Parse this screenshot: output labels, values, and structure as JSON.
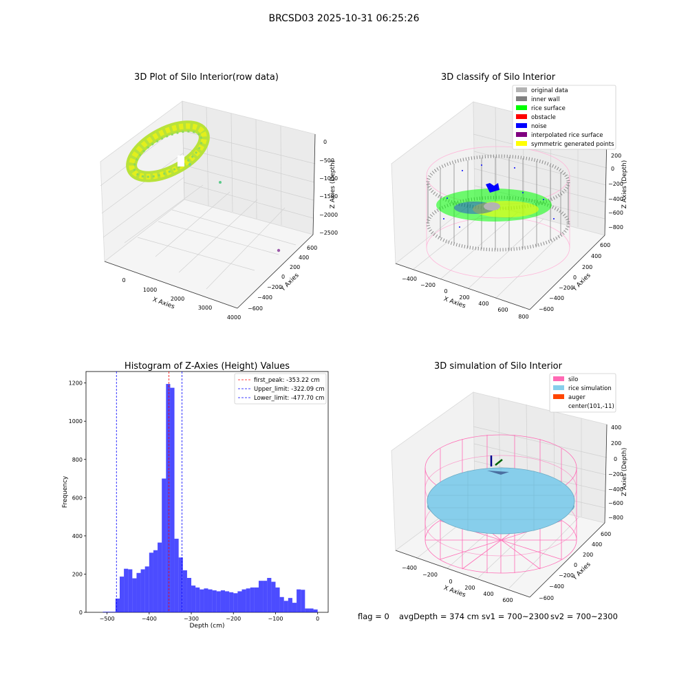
{
  "figure": {
    "title": "BRCSD03 2025-10-31 06:25:26",
    "footer": {
      "flag": "flag = 0",
      "avg_depth": "avgDepth = 374 cm",
      "sv1": "sv1 = 700~2300",
      "sv2": "sv2 = 700~2300"
    }
  },
  "panel_raw": {
    "title": "3D Plot of Silo Interior(row data)",
    "xlabel": "X Axies",
    "ylabel": "Y Axies",
    "zlabel": "Z Axies (Depth)",
    "x_ticks": [
      "0",
      "1000",
      "2000",
      "3000",
      "4000"
    ],
    "y_ticks": [
      "600",
      "400",
      "200",
      "0",
      "−200",
      "−400",
      "−600"
    ],
    "z_ticks": [
      "0",
      "−500",
      "−1000",
      "−1500",
      "−2000",
      "−2500"
    ]
  },
  "panel_classify": {
    "title": "3D classify of Silo Interior",
    "xlabel": "X Axies",
    "ylabel": "Y Axies",
    "zlabel": "Z Axies (Depth)",
    "x_ticks": [
      "−400",
      "−200",
      "0",
      "200",
      "400",
      "600",
      "800"
    ],
    "y_ticks": [
      "600",
      "400",
      "200",
      "0",
      "−200",
      "−400",
      "−600"
    ],
    "z_ticks": [
      "200",
      "0",
      "−200",
      "−400",
      "−600",
      "−800"
    ],
    "legend": [
      {
        "label": "original data",
        "color": "#b3b3b3"
      },
      {
        "label": "inner wall",
        "color": "#808080"
      },
      {
        "label": "rice surface",
        "color": "#00ff00"
      },
      {
        "label": "obstacle",
        "color": "#ff0000"
      },
      {
        "label": "noise",
        "color": "#0000ff"
      },
      {
        "label": "interpolated rice surface",
        "color": "#800080"
      },
      {
        "label": "symmetric generated points",
        "color": "#ffff00"
      }
    ]
  },
  "panel_sim": {
    "title": "3D simulation of Silo Interior",
    "xlabel": "X Axies",
    "ylabel": "Y Axies",
    "zlabel": "Z Axies (Depth)",
    "x_ticks": [
      "−400",
      "−200",
      "0",
      "200",
      "400",
      "600"
    ],
    "y_ticks": [
      "600",
      "400",
      "200",
      "0",
      "−200",
      "−400",
      "−600"
    ],
    "z_ticks": [
      "400",
      "200",
      "0",
      "−200",
      "−400",
      "−600",
      "−800"
    ],
    "legend": [
      {
        "label": "silo",
        "color": "#ff69b4"
      },
      {
        "label": "rice simulation",
        "color": "#87ceeb"
      },
      {
        "label": "auger",
        "color": "#ff4500"
      },
      {
        "label": "center(101,-11)",
        "color": ""
      }
    ]
  },
  "chart_data": [
    {
      "type": "scatter",
      "title": "3D Plot of Silo Interior(row data)",
      "xlabel": "X Axies",
      "ylabel": "Y Axies",
      "zlabel": "Z Axies (Depth)",
      "xlim": [
        -500,
        4000
      ],
      "ylim": [
        -600,
        600
      ],
      "zlim": [
        -2500,
        100
      ]
    },
    {
      "type": "scatter",
      "title": "3D classify of Silo Interior",
      "xlabel": "X Axies",
      "ylabel": "Y Axies",
      "zlabel": "Z Axies (Depth)",
      "xlim": [
        -500,
        800
      ],
      "ylim": [
        -600,
        600
      ],
      "zlim": [
        -900,
        300
      ],
      "series": [
        {
          "name": "original data",
          "color": "#b3b3b3"
        },
        {
          "name": "inner wall",
          "color": "#808080"
        },
        {
          "name": "rice surface",
          "color": "#00ff00"
        },
        {
          "name": "obstacle",
          "color": "#ff0000"
        },
        {
          "name": "noise",
          "color": "#0000ff"
        },
        {
          "name": "interpolated rice surface",
          "color": "#800080"
        },
        {
          "name": "symmetric generated points",
          "color": "#ffff00"
        }
      ]
    },
    {
      "type": "bar",
      "title": "Histogram of Z-Axies (Height) Values",
      "xlabel": "Depth (cm)",
      "ylabel": "Frequency",
      "xlim": [
        -550,
        25
      ],
      "ylim": [
        0,
        1260
      ],
      "x_ticks": [
        -500,
        -400,
        -300,
        -200,
        -100,
        0
      ],
      "y_ticks": [
        0,
        200,
        400,
        600,
        800,
        1000,
        1200
      ],
      "bin_width": 10,
      "bin_starts": [
        -510,
        -500,
        -490,
        -480,
        -470,
        -460,
        -450,
        -440,
        -430,
        -420,
        -410,
        -400,
        -390,
        -380,
        -370,
        -360,
        -350,
        -340,
        -330,
        -320,
        -310,
        -300,
        -290,
        -280,
        -270,
        -260,
        -250,
        -240,
        -230,
        -220,
        -210,
        -200,
        -190,
        -180,
        -170,
        -160,
        -150,
        -140,
        -130,
        -120,
        -110,
        -100,
        -90,
        -80,
        -70,
        -60,
        -50,
        -40,
        -30,
        -20,
        -10
      ],
      "values": [
        3,
        3,
        3,
        72,
        187,
        228,
        225,
        178,
        206,
        225,
        240,
        312,
        325,
        365,
        700,
        1195,
        1175,
        385,
        287,
        220,
        180,
        140,
        130,
        120,
        125,
        120,
        115,
        110,
        115,
        110,
        105,
        100,
        110,
        120,
        125,
        130,
        130,
        165,
        165,
        180,
        160,
        130,
        80,
        60,
        75,
        50,
        120,
        118,
        20,
        20,
        15
      ],
      "bar_color": "#0000ff",
      "vlines": [
        {
          "label": "first_peak: -353.22 cm",
          "x": -353.22,
          "color": "#ff0000"
        },
        {
          "label": "Upper_limit: -322.09 cm",
          "x": -322.09,
          "color": "#0000ff"
        },
        {
          "label": "Lower_limit: -477.70 cm",
          "x": -477.7,
          "color": "#0000ff"
        }
      ],
      "legend_position": "top-right"
    },
    {
      "type": "surface",
      "title": "3D simulation of Silo Interior",
      "xlabel": "X Axies",
      "ylabel": "Y Axies",
      "zlabel": "Z Axies (Depth)",
      "xlim": [
        -500,
        700
      ],
      "ylim": [
        -650,
        650
      ],
      "zlim": [
        -900,
        450
      ],
      "series": [
        {
          "name": "silo",
          "color": "#ff69b4"
        },
        {
          "name": "rice simulation",
          "color": "#87ceeb"
        },
        {
          "name": "auger",
          "color": "#ff4500"
        }
      ],
      "center": [
        101,
        -11
      ]
    }
  ]
}
